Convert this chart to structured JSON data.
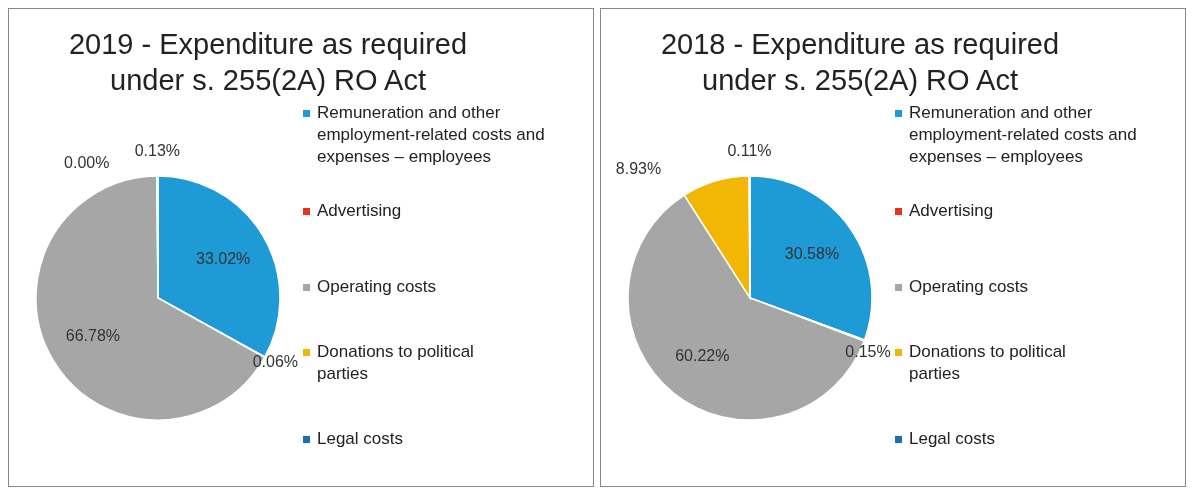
{
  "chart_data": [
    {
      "type": "pie",
      "title": "2019 - Expenditure as required under s. 255(2A) RO Act",
      "categories": [
        "Remuneration and other employment-related costs and expenses – employees",
        "Advertising",
        "Operating costs",
        "Donations to political parties",
        "Legal costs"
      ],
      "values": [
        33.02,
        0.06,
        66.78,
        0.0,
        0.13
      ],
      "value_labels": [
        "33.02%",
        "0.06%",
        "66.78%",
        "0.00%",
        "0.13%"
      ],
      "colors": [
        "#1e9ad6",
        "#e8321e",
        "#a6a6a6",
        "#f2b705",
        "#1f6fb0"
      ],
      "legend": "right"
    },
    {
      "type": "pie",
      "title": "2018 - Expenditure as required under s. 255(2A) RO Act",
      "categories": [
        "Remuneration and other employment-related costs and expenses – employees",
        "Advertising",
        "Operating costs",
        "Donations to political parties",
        "Legal costs"
      ],
      "values": [
        30.58,
        0.15,
        60.22,
        8.93,
        0.11
      ],
      "value_labels": [
        "30.58%",
        "0.15%",
        "60.22%",
        "8.93%",
        "0.11%"
      ],
      "colors": [
        "#1e9ad6",
        "#e8321e",
        "#a6a6a6",
        "#f2b705",
        "#1f6fb0"
      ],
      "legend": "right"
    }
  ]
}
